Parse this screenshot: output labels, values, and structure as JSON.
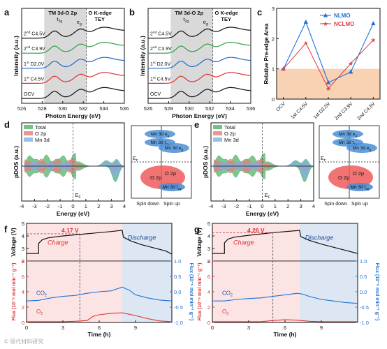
{
  "figure": {
    "panel_letters": [
      "a",
      "b",
      "c",
      "d",
      "e",
      "f",
      "g"
    ],
    "watermark": "© 现代材料研究"
  },
  "colors": {
    "black": "#111111",
    "red": "#e03131",
    "green": "#2f9e44",
    "blue": "#1f66d1",
    "gray_band": "#d9d9d9",
    "peach": "#f9d2b4",
    "nlmo": "#1f6fe0",
    "nclmo": "#e4424a",
    "total_fill": "#52b36b",
    "o2p_fill": "#e77a7a",
    "mn3d_fill": "#7fb0e6",
    "o2p_ellipse": "#f05a5a",
    "mn_ellipse": "#4a8fd6",
    "charge_bg": "#fde4e4",
    "discharge_bg": "#dde6f3",
    "co2_line": "#1f72d6",
    "o2_line": "#e03131",
    "ref_line": "#d63c3c"
  },
  "panel_a": {
    "xlabel": "Photon Energy (eV)",
    "ylabel": "Intensity (a.u.)",
    "xticks": [
      526,
      528,
      530,
      532,
      534,
      536
    ],
    "xlim": [
      526,
      536
    ],
    "band_eV": [
      528.2,
      532.3
    ],
    "band_title": "TM 3d-O 2p",
    "t2g": "t2g",
    "eg": "eg",
    "edge_label": [
      "O K-edge",
      "TEY"
    ],
    "curves": [
      {
        "label": "OCV",
        "sup": "",
        "rest": "OCV",
        "color": "black"
      },
      {
        "label": "1st C4.5V",
        "sup": "st",
        "num": "1",
        "rest": " C4.5V",
        "color": "red"
      },
      {
        "label": "1st D2.0V",
        "sup": "st",
        "num": "1",
        "rest": " D2.0V",
        "color": "blue"
      },
      {
        "label": "2nd C3.9V",
        "sup": "nd",
        "num": "2",
        "rest": " C3.9V",
        "color": "green"
      },
      {
        "label": "2nd C4.5V",
        "sup": "nd",
        "num": "2",
        "rest": " C4.5V",
        "color": "black"
      }
    ]
  },
  "panel_b": {
    "xlabel": "Photon Energy (eV)",
    "ylabel": "Intensity (a.u.)",
    "xticks": [
      526,
      528,
      530,
      532,
      534,
      536
    ],
    "xlim": [
      526,
      536
    ],
    "band_eV": [
      528.2,
      532.3
    ],
    "band_title": "TM 3d-O 2p",
    "t2g": "t2g",
    "eg": "eg",
    "edge_label": [
      "O K-edge",
      "TEY"
    ],
    "curves": [
      {
        "label": "OCV",
        "sup": "",
        "rest": "OCV",
        "color": "black"
      },
      {
        "label": "1st C4.5V",
        "sup": "st",
        "num": "1",
        "rest": " C4.5V",
        "color": "red"
      },
      {
        "label": "1st D2.0V",
        "sup": "st",
        "num": "1",
        "rest": " D2.0V",
        "color": "blue"
      },
      {
        "label": "2nd C3.9V",
        "sup": "nd",
        "num": "2",
        "rest": " C3.9V",
        "color": "green"
      },
      {
        "label": "2nd C4.5V",
        "sup": "nd",
        "num": "2",
        "rest": " C4.5V",
        "color": "black"
      }
    ]
  },
  "chart_data": [
    {
      "panel": "c",
      "type": "line",
      "ylabel": "Relative Pre-edge Area",
      "categories": [
        "OCV",
        "1st C4.5V",
        "1st D2.0V",
        "2nd C3.9V",
        "2nd C4.5V"
      ],
      "ylim": [
        0,
        3
      ],
      "yticks": [
        0,
        1,
        2,
        3
      ],
      "reference_band": [
        0,
        1
      ],
      "legend": "top-right",
      "series": [
        {
          "name": "NLMO",
          "marker": "triangle",
          "color": "nlmo",
          "values": [
            1.0,
            2.55,
            0.55,
            0.9,
            2.5
          ]
        },
        {
          "name": "NCLMO",
          "marker": "star",
          "color": "nclmo",
          "values": [
            1.0,
            1.85,
            0.35,
            1.18,
            1.95
          ]
        }
      ]
    },
    {
      "panel": "f",
      "type": "line",
      "xlabel": "Time (h)",
      "xticks": [
        0,
        3,
        6,
        9
      ],
      "xlim": [
        0,
        12
      ],
      "voltage_axis": {
        "label": "Voltage (V)",
        "ylim": [
          2,
          5
        ],
        "yticks": [
          2,
          3,
          4,
          5
        ]
      },
      "flux_axis_left": {
        "label": "Flux (10⁻⁸ mol min⁻¹ g⁻¹)",
        "ylim": [
          0,
          8
        ],
        "yticks": [
          0,
          2,
          4,
          6,
          8
        ]
      },
      "flux_axis_right": {
        "label": "Flux (10⁻⁶ mol min⁻¹ g⁻¹)",
        "ylim": [
          -1.0,
          1.0
        ],
        "yticks": [
          -1.0,
          -0.5,
          0.0,
          0.5,
          1.0
        ]
      },
      "charge_end_h": 7.9,
      "peak_voltage_label": "4.17 V",
      "peak_voltage": 4.17,
      "peak_time_h": 4.4,
      "charge_label": "Charge",
      "discharge_label": "Discharge",
      "series": [
        {
          "name": "Voltage",
          "axis": "voltage",
          "x": [
            0,
            1.0,
            1.0,
            1.3,
            1.8,
            3,
            5,
            7,
            7.9,
            8.0,
            8.6,
            9.5,
            10.5,
            11.5,
            12
          ],
          "y": [
            2.6,
            2.6,
            3.4,
            3.7,
            3.85,
            4.0,
            4.17,
            4.35,
            4.45,
            3.9,
            3.6,
            3.3,
            3.05,
            2.8,
            2.55
          ]
        },
        {
          "name": "CO2",
          "axis": "flux_right",
          "x": [
            0,
            1,
            2,
            3,
            4,
            5,
            6,
            7,
            7.9,
            8.5,
            9,
            10,
            11,
            12
          ],
          "y": [
            -0.3,
            -0.28,
            -0.2,
            -0.15,
            -0.12,
            -0.05,
            0.0,
            0.03,
            0.15,
            0.05,
            -0.1,
            -0.2,
            -0.27,
            -0.3
          ]
        },
        {
          "name": "O2",
          "axis": "flux_left",
          "x": [
            0,
            1,
            2,
            3,
            4,
            5,
            5.5,
            6,
            7,
            7.9,
            9,
            10,
            11,
            12
          ],
          "y": [
            0.1,
            0.1,
            0.1,
            0.1,
            0.15,
            0.25,
            0.8,
            1.0,
            1.2,
            1.25,
            0.9,
            0.5,
            0.2,
            0.1
          ]
        }
      ],
      "series_labels": [
        "CO2",
        "O2"
      ]
    },
    {
      "panel": "g",
      "type": "line",
      "xlabel": "Time (h)",
      "xticks": [
        0,
        3,
        6,
        9
      ],
      "xlim": [
        0,
        12
      ],
      "voltage_axis": {
        "label": "Voltage (V)",
        "ylim": [
          2,
          5
        ],
        "yticks": [
          2,
          3,
          4,
          5
        ]
      },
      "flux_axis_left": {
        "label": "Flux (10⁻⁸ mol min⁻¹ g⁻¹)",
        "ylim": [
          0,
          8
        ],
        "yticks": [
          0,
          2,
          4,
          6,
          8
        ]
      },
      "flux_axis_right": {
        "label": "Flux (10⁻⁶ mol min⁻¹ g⁻¹)",
        "ylim": [
          -1.0,
          1.0
        ],
        "yticks": [
          -1.0,
          -0.5,
          0.0,
          0.5,
          1.0
        ]
      },
      "charge_end_h": 7.2,
      "peak_voltage_label": "4.26 V",
      "peak_voltage": 4.26,
      "peak_time_h": 5.0,
      "charge_label": "Charge",
      "discharge_label": "Discharge",
      "series": [
        {
          "name": "Voltage",
          "axis": "voltage",
          "x": [
            0,
            1.0,
            1.0,
            1.3,
            1.8,
            3,
            5,
            7,
            7.2,
            7.3,
            8,
            9,
            10,
            11,
            12
          ],
          "y": [
            2.6,
            2.6,
            3.45,
            3.75,
            3.9,
            4.05,
            4.26,
            4.42,
            4.45,
            3.95,
            3.65,
            3.35,
            3.1,
            2.85,
            2.6
          ]
        },
        {
          "name": "CO2",
          "axis": "flux_right",
          "x": [
            0,
            1,
            2,
            3,
            4,
            5,
            6,
            7,
            7.5,
            8,
            9,
            10,
            11,
            12
          ],
          "y": [
            -0.3,
            -0.3,
            -0.25,
            -0.22,
            -0.2,
            -0.15,
            -0.1,
            -0.05,
            -0.08,
            -0.15,
            -0.25,
            -0.3,
            -0.35,
            -0.38
          ]
        },
        {
          "name": "O2",
          "axis": "flux_left",
          "x": [
            0,
            1,
            2,
            3,
            4,
            5,
            6,
            7,
            8,
            9,
            10,
            11,
            12
          ],
          "y": [
            0.1,
            0.1,
            0.1,
            0.1,
            0.1,
            0.25,
            0.35,
            0.3,
            0.15,
            0.1,
            0.1,
            0.1,
            0.1
          ]
        }
      ],
      "series_labels": [
        "CO2",
        "O2"
      ]
    }
  ],
  "panel_d": {
    "xlabel": "Energy (eV)",
    "ylabel": "pDOS (a.u.)",
    "xticks": [
      -4,
      -3,
      -2,
      -1,
      0,
      1,
      2,
      3,
      4
    ],
    "xlim": [
      -4,
      4
    ],
    "legend": [
      "Total",
      "O 2p",
      "Mn 3d"
    ],
    "fermi": "EF",
    "schematic": {
      "top_upper": "Mn 3d eg",
      "top_lower": "Mn 3d t2g",
      "right_upper": "Mn 3d eg",
      "fermi": "EF",
      "o2p_left": "O 2p",
      "o2p_right": "O 2p",
      "bottom_right": "Mn 3d t2g",
      "spin_down": "Spin down",
      "spin_up": "Spin up"
    }
  },
  "panel_e": {
    "xlabel": "Energy (eV)",
    "ylabel": "pDOS (a.u.)",
    "xticks": [
      -4,
      -3,
      -2,
      -1,
      0,
      1,
      2,
      3,
      4
    ],
    "xlim": [
      -4,
      4
    ],
    "legend": [
      "Total",
      "O 2p",
      "Mn 3d"
    ],
    "fermi": "EF",
    "schematic": {
      "top_upper": "Mn 3d eg",
      "top_lower": "Mn 3d t2g",
      "right_upper": "Mn 3d eg",
      "fermi": "EF",
      "o2p_left": "O 2p",
      "o2p_right": "O 2p",
      "bottom_right": "Mn 3d t2g",
      "spin_down": "Spin down",
      "spin_up": "Spin up"
    }
  }
}
